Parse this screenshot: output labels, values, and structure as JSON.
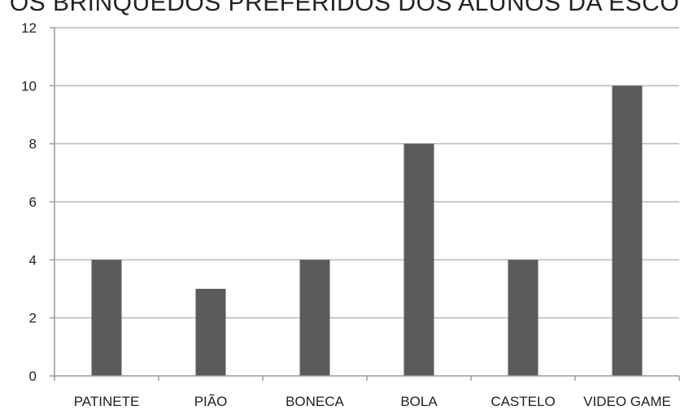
{
  "chart_data": {
    "type": "bar",
    "title": "OS BRINQUEDOS PREFERIDOS DOS ALUNOS DA ESCO",
    "xlabel": "",
    "ylabel": "",
    "categories": [
      "PATINETE",
      "PIÃO",
      "BONECA",
      "BOLA",
      "CASTELO",
      "VIDEO GAME"
    ],
    "values": [
      4,
      3,
      4,
      8,
      4,
      10
    ],
    "ylim": [
      0,
      12
    ],
    "yticks": [
      0,
      2,
      4,
      6,
      8,
      10,
      12
    ],
    "grid": true,
    "legend": "none",
    "colors": {
      "bar": "#5b5b5b",
      "grid": "#b8b8b8",
      "axis": "#9a9a9a"
    }
  }
}
